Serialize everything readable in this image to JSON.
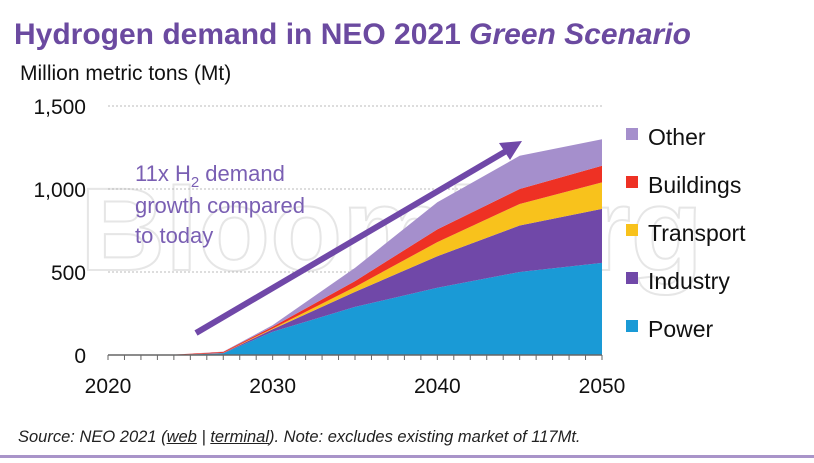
{
  "title": {
    "main": "Hydrogen demand in NEO 2021 ",
    "italic": "Green Scenario"
  },
  "source": {
    "prefix": "Source: NEO 2021 (",
    "link1": "web",
    "sep": " | ",
    "link2": "terminal",
    "suffix": "). Note: excludes existing market of 117Mt."
  },
  "watermark": "Bloomberg",
  "chart_data": {
    "type": "area",
    "stacked": true,
    "ylabel": "Million metric tons (Mt)",
    "xlabel": "",
    "xlim": [
      2020,
      2050
    ],
    "ylim": [
      0,
      1500
    ],
    "xticks": [
      "2020",
      "2030",
      "2040",
      "2050"
    ],
    "yticks": [
      "0",
      "500",
      "1,000",
      "1,500"
    ],
    "grid": true,
    "legend_position": "right",
    "annotation": {
      "line1": "11x H",
      "sub": "2",
      "line1b": " demand",
      "line2": "growth compared",
      "line3": "to today"
    },
    "x": [
      2020,
      2024,
      2027,
      2030,
      2035,
      2040,
      2045,
      2050
    ],
    "series": [
      {
        "name": "Power",
        "color": "#1a9ad6",
        "values": [
          0,
          0,
          10,
          140,
          290,
          405,
          500,
          555
        ]
      },
      {
        "name": "Industry",
        "color": "#7048a8",
        "values": [
          0,
          0,
          2,
          15,
          90,
          190,
          280,
          325
        ]
      },
      {
        "name": "Transport",
        "color": "#f8c21c",
        "values": [
          0,
          0,
          1,
          5,
          30,
          85,
          130,
          160
        ]
      },
      {
        "name": "Buildings",
        "color": "#ee3124",
        "values": [
          0,
          2,
          6,
          10,
          35,
          77,
          90,
          100
        ]
      },
      {
        "name": "Other",
        "color": "#a58fcc",
        "values": [
          0,
          0,
          1,
          10,
          80,
          163,
          200,
          160
        ]
      }
    ]
  }
}
